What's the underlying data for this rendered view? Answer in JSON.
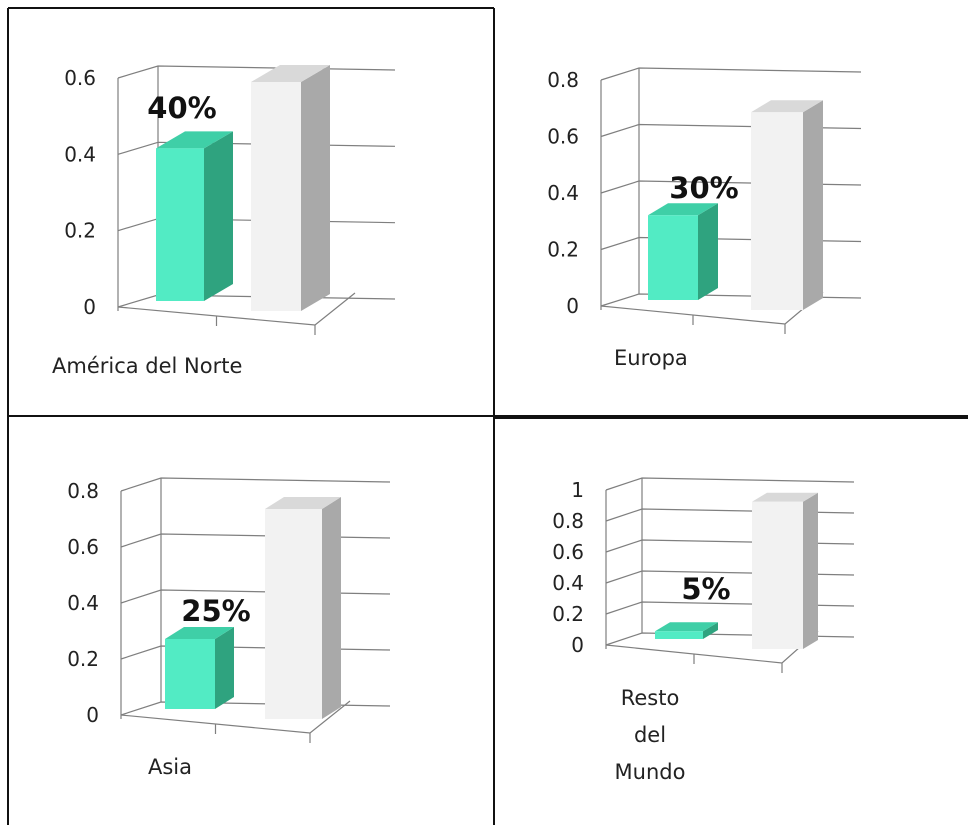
{
  "colors": {
    "accent_front": "#52ebc4",
    "accent_side": "#2fa37f",
    "accent_top": "#3fcfa7",
    "ref_front": "#f2f2f2",
    "ref_side": "#a9a9a9",
    "ref_top": "#d9d9d9",
    "grid": "#7f7f7f",
    "border": "#111111"
  },
  "chart_data": [
    {
      "type": "bar",
      "categories": [
        "América del Norte"
      ],
      "series": [
        {
          "values": [
            0.4
          ]
        },
        {
          "values": [
            0.6
          ]
        }
      ],
      "data_label": "40%",
      "yticks": [
        "0",
        "0.2",
        "0.4",
        "0.6"
      ],
      "ylim": [
        0,
        0.6
      ],
      "grid": true
    },
    {
      "type": "bar",
      "categories": [
        "Europa"
      ],
      "series": [
        {
          "values": [
            0.3
          ]
        },
        {
          "values": [
            0.7
          ]
        }
      ],
      "data_label": "30%",
      "yticks": [
        "0",
        "0.2",
        "0.4",
        "0.6",
        "0.8"
      ],
      "ylim": [
        0,
        0.8
      ],
      "grid": true
    },
    {
      "type": "bar",
      "categories": [
        "Asia"
      ],
      "series": [
        {
          "values": [
            0.25
          ]
        },
        {
          "values": [
            0.75
          ]
        }
      ],
      "data_label": "25%",
      "yticks": [
        "0",
        "0.2",
        "0.4",
        "0.6",
        "0.8"
      ],
      "ylim": [
        0,
        0.8
      ],
      "grid": true
    },
    {
      "type": "bar",
      "categories": [
        "Resto del Mundo"
      ],
      "series": [
        {
          "values": [
            0.05
          ]
        },
        {
          "values": [
            0.95
          ]
        }
      ],
      "data_label": "5%",
      "yticks": [
        "0",
        "0.2",
        "0.4",
        "0.6",
        "0.8",
        "1"
      ],
      "ylim": [
        0,
        1
      ],
      "grid": true
    }
  ]
}
